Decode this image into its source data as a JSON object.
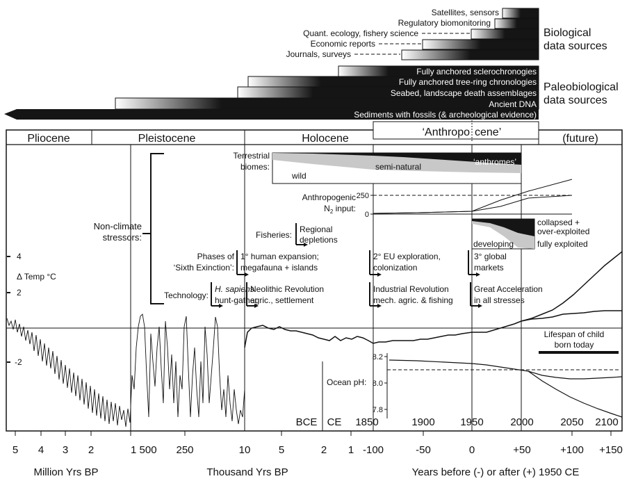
{
  "colors": {
    "ink": "#111111",
    "grey": "#c8c8c8",
    "bar_dark": "#151515",
    "bar_light": "#ffffff"
  },
  "biological": {
    "heading_line1": "Biological",
    "heading_line2": "data sources",
    "sources": [
      "Satellites, sensors",
      "Regulatory biomonitoring",
      "Quant. ecology, fishery science",
      "Economic reports",
      "Journals, surveys"
    ]
  },
  "paleobiological": {
    "heading_line1": "Paleobiological",
    "heading_line2": "data sources",
    "sources": [
      "Fully anchored sclerochronogies",
      "Fully anchored tree-ring chronologies",
      "Seabed, landscape death assemblages",
      "Ancient DNA",
      "Sediments with fossils (& archeological evidence)"
    ]
  },
  "epochs": {
    "pliocene": "Pliocene",
    "pleistocene": "Pleistocene",
    "holocene": "Holocene",
    "anthropocene_part1": "‘Anthropo",
    "anthropocene_part2": "cene’",
    "future": "(future)"
  },
  "stressors": {
    "non_climate_line1": "Non-climate",
    "non_climate_line2": "stressors:",
    "terrestrial_line1": "Terrestrial",
    "terrestrial_line2": "biomes:",
    "wild": "wild",
    "semi_natural": "semi-natural",
    "anthromes": "‘anthromes’",
    "nitrogen_line1": "Anthropogenic",
    "nitrogen_line2_a": "N",
    "nitrogen_line2_sub": "2",
    "nitrogen_line2_b": " input:",
    "n_tick_top": "250",
    "n_tick_bottom": "0",
    "fisheries": "Fisheries:",
    "regional_line1": "Regional",
    "regional_line2": "depletions",
    "developing": "developing",
    "collapsed_line1": "collapsed +",
    "collapsed_line2": "over-exploited",
    "fully_exploited": "fully exploited",
    "phases_line1": "Phases of",
    "phases_line2": "‘Sixth Exinction’:",
    "phase1_line1": "1° human expansion;",
    "phase1_line2": "megafauna + islands",
    "phase2_line1": "2° EU exploration,",
    "phase2_line2": "colonization",
    "phase3_line1": "3° global",
    "phase3_line2": "markets",
    "technology": "Technology:",
    "tech1_line1": "H. sapiens",
    "tech1_line2": "hunt-gather",
    "tech2_line1": "Neolithic Revolution",
    "tech2_line2": "agric., settlement",
    "tech3_line1": "Industrial Revolution",
    "tech3_line2": "mech. agric. & fishing",
    "tech4_line1": "Great Acceleration",
    "tech4_line2": "in all stresses"
  },
  "temperature": {
    "label": "Δ Temp °C",
    "ticks": [
      "4",
      "2",
      "-2"
    ],
    "lifespan_line1": "Lifespan of child",
    "lifespan_line2": "born today"
  },
  "ocean_ph": {
    "label": "Ocean pH:",
    "ticks": [
      "8.2",
      "8.0",
      "7.8"
    ]
  },
  "bottom_axis": {
    "era_labels": [
      "BCE",
      "CE",
      "1850",
      "1900",
      "1950",
      "2000",
      "2050",
      "2100"
    ],
    "ticks": [
      "5",
      "4",
      "3",
      "2",
      "1",
      "1 500",
      "250",
      "10",
      "5",
      "2",
      "1",
      "-100",
      "-50",
      "0",
      "+50",
      "+100",
      "+150"
    ],
    "unit_million": "Million Yrs BP",
    "unit_thousand": "Thousand Yrs BP",
    "unit_years": "Years before (-) or after (+) 1950 CE"
  }
}
